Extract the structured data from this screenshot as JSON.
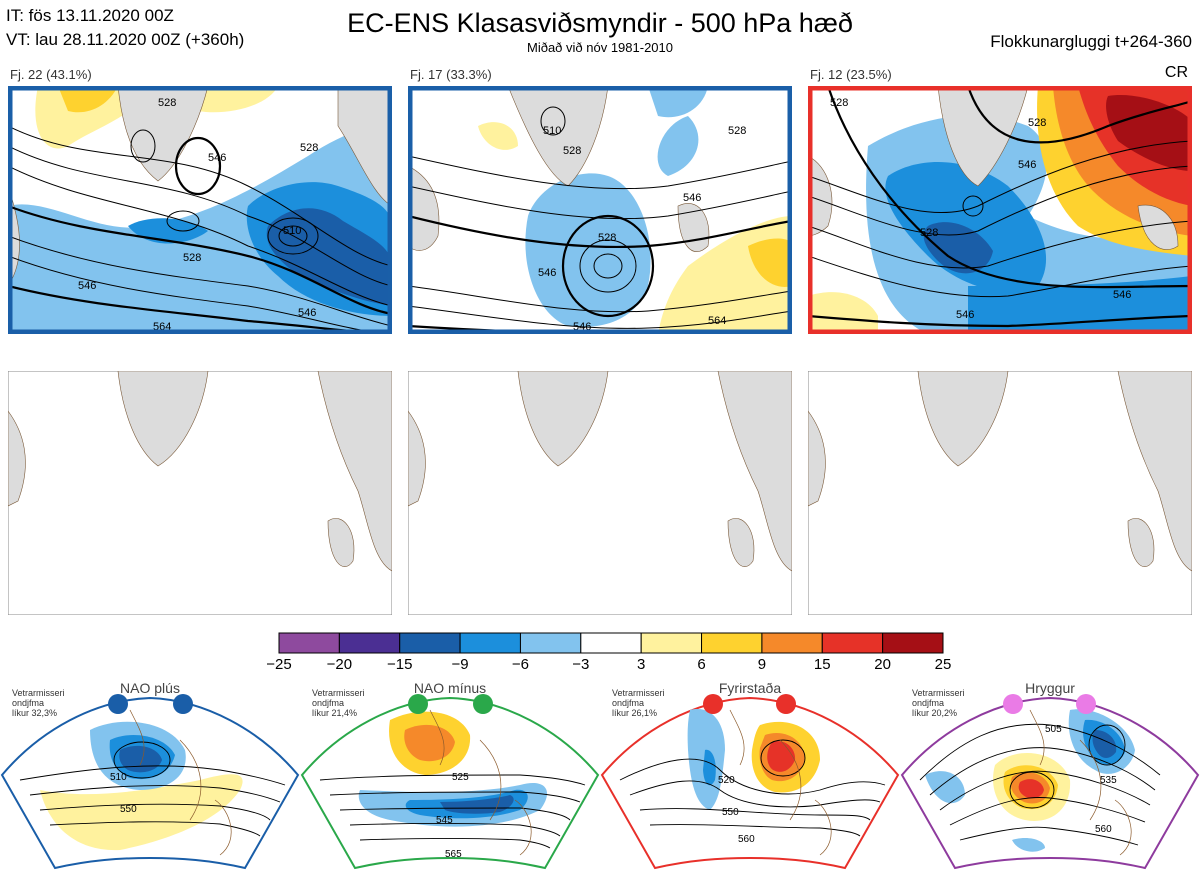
{
  "header": {
    "init_time": "IT: fös 13.11.2020 00Z",
    "valid_time": "VT: lau 28.11.2020 00Z  (+360h)",
    "title": "EC-ENS Klasasviðsmyndir - 500 hPa hæð",
    "subtitle": "Miðað við nóv 1981-2010",
    "window": "Flokkunargluggi t+264-360"
  },
  "clusters": [
    {
      "label": "Fj. 22 (43.1%)",
      "frame_color": "#1a5fa8",
      "contours": [
        "528",
        "546",
        "528",
        "510",
        "528",
        "546",
        "546",
        "564"
      ]
    },
    {
      "label": "Fj. 17 (33.3%)",
      "frame_color": "#1a5fa8",
      "contours": [
        "510",
        "528",
        "528",
        "546",
        "528",
        "546",
        "546",
        "564"
      ]
    },
    {
      "label": "Fj. 12 (23.5%)",
      "frame_color": "#e8302a",
      "contours": [
        "528",
        "546",
        "528",
        "546",
        "546",
        "528"
      ],
      "tag": "CR"
    }
  ],
  "colorbar": {
    "ticks": [
      "−25",
      "−20",
      "−15",
      "−9",
      "−6",
      "−3",
      "3",
      "6",
      "9",
      "15",
      "20",
      "25"
    ],
    "colors": [
      "#8e4a9e",
      "#4b2f93",
      "#1a5ea8",
      "#1c8fdc",
      "#82c3ee",
      "#ffffff",
      "#fff29e",
      "#fed22f",
      "#f5892a",
      "#e63228",
      "#a50f15"
    ]
  },
  "regimes": [
    {
      "name": "NAO plús",
      "prob_line1": "Vetrarmisseri",
      "prob_line2": "ondjfma",
      "prob_line3": "líkur 32,3%",
      "color": "#1a5ea8",
      "labels": [
        "510",
        "550"
      ]
    },
    {
      "name": "NAO mínus",
      "prob_line1": "Vetrarmisseri",
      "prob_line2": "ondjfma",
      "prob_line3": "líkur 21,4%",
      "color": "#2aa84a",
      "labels": [
        "525",
        "545",
        "565"
      ]
    },
    {
      "name": "Fyrirstaða",
      "prob_line1": "Vetrarmisseri",
      "prob_line2": "ondjfma",
      "prob_line3": "líkur 26,1%",
      "color": "#e8302a",
      "labels": [
        "520",
        "550",
        "560"
      ]
    },
    {
      "name": "Hryggur",
      "prob_line1": "Vetrarmisseri",
      "prob_line2": "ondjfma",
      "prob_line3": "líkur 20,2%",
      "color": "#ea7be6",
      "labels": [
        "505",
        "535",
        "560"
      ]
    }
  ],
  "chart_data": {
    "type": "heatmap",
    "title": "EC-ENS Klasasviðsmyndir - 500 hPa hæð",
    "subtitle": "Miðað við nóv 1981-2010",
    "clusters": [
      {
        "name": "Fj. 22",
        "probability_pct": 43.1,
        "contour_values": [
          510,
          528,
          546,
          564
        ]
      },
      {
        "name": "Fj. 17",
        "probability_pct": 33.3,
        "contour_values": [
          510,
          528,
          546,
          564
        ]
      },
      {
        "name": "Fj. 12",
        "probability_pct": 23.5,
        "contour_values": [
          528,
          546
        ]
      }
    ],
    "colorbar_levels": [
      -25,
      -20,
      -15,
      -9,
      -6,
      -3,
      3,
      6,
      9,
      15,
      20,
      25
    ],
    "regimes": [
      {
        "name": "NAO plús",
        "winter_probability_pct": 32.3
      },
      {
        "name": "NAO mínus",
        "winter_probability_pct": 21.4
      },
      {
        "name": "Fyrirstaða",
        "winter_probability_pct": 26.1
      },
      {
        "name": "Hryggur",
        "winter_probability_pct": 20.2
      }
    ]
  }
}
